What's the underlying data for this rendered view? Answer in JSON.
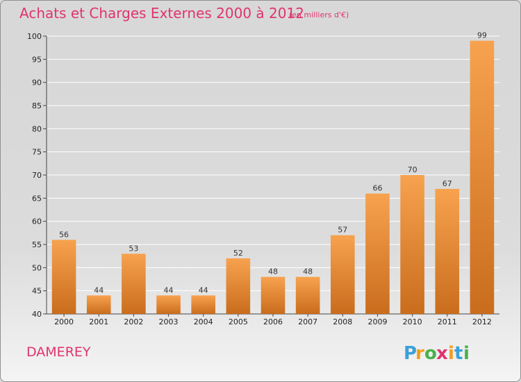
{
  "chart_data": {
    "type": "bar",
    "title": "Achats et Charges Externes 2000 à 2012",
    "subtitle": "(en milliers d'€)",
    "xlabel": "",
    "ylabel": "",
    "categories": [
      "2000",
      "2001",
      "2002",
      "2003",
      "2004",
      "2005",
      "2006",
      "2007",
      "2008",
      "2009",
      "2010",
      "2011",
      "2012"
    ],
    "values": [
      56,
      44,
      53,
      44,
      44,
      52,
      48,
      48,
      57,
      66,
      70,
      67,
      99
    ],
    "ylim": [
      40,
      100
    ],
    "yticks": [
      40,
      45,
      50,
      55,
      60,
      65,
      70,
      75,
      80,
      85,
      90,
      95,
      100
    ],
    "grid": true,
    "data_labels": true,
    "bar_colors": [
      "#f7a24f",
      "#c96d1d"
    ],
    "grid_color": "#ffffff"
  },
  "footer": {
    "commune": "DAMEREY",
    "logo_text": "Proxiti"
  },
  "colors": {
    "title": "#e0336f",
    "background": "#d9d9d9"
  }
}
